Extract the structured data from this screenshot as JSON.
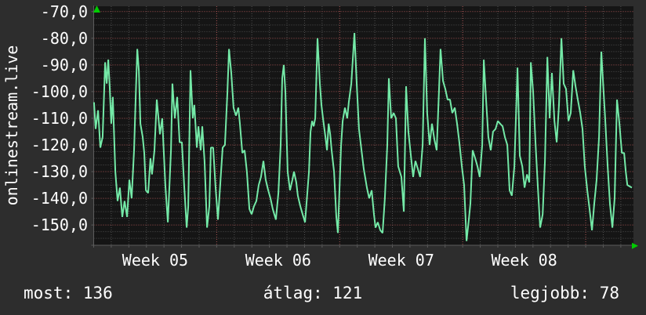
{
  "watermark": "onlinestream.live",
  "stats": [
    {
      "label": "most:",
      "value": "136"
    },
    {
      "label": "átlag:",
      "value": "121"
    },
    {
      "label": "legjobb:",
      "value": "78"
    }
  ],
  "chart_data": {
    "type": "line",
    "title": "onlinestream.live",
    "xlabel": "",
    "ylabel": "",
    "legend": "none",
    "grid": "on",
    "y_axis": {
      "ylim": [
        -157.6,
        -68
      ],
      "major_step": 10,
      "minor_step": 2.5,
      "ticks": [
        {
          "label": "-70,0",
          "value": -70
        },
        {
          "label": "-80,0",
          "value": -80
        },
        {
          "label": "-90,0",
          "value": -90
        },
        {
          "label": "-100,0",
          "value": -100
        },
        {
          "label": "-110,0",
          "value": -110
        },
        {
          "label": "-120,0",
          "value": -120
        },
        {
          "label": "-130,0",
          "value": -130
        },
        {
          "label": "-140,0",
          "value": -140
        },
        {
          "label": "-150,0",
          "value": -150
        }
      ]
    },
    "x_axis": {
      "unit": "days",
      "days_total": 30.77,
      "minor_step_days": 1,
      "week_boundaries_days": [
        7,
        14,
        21,
        28
      ],
      "ticks": [
        {
          "label": "Week 05",
          "day": 3.5
        },
        {
          "label": "Week 06",
          "day": 10.5
        },
        {
          "label": "Week 07",
          "day": 17.5
        },
        {
          "label": "Week 08",
          "day": 24.5
        }
      ]
    },
    "summary": {
      "most": 136,
      "atlag": 121,
      "legjobb": 78
    },
    "colors": {
      "background": "#2d2d2d",
      "plot_background": "#151515",
      "minor_grid": "#4f4f4f",
      "major_grid": "#a85454",
      "axis": "#5c5c5c",
      "line": "#74e9a7",
      "arrow": "#00cc00",
      "text": "#ffffff"
    },
    "points": [
      [
        0.02,
        -104
      ],
      [
        0.11,
        -114
      ],
      [
        0.25,
        -107
      ],
      [
        0.38,
        -121
      ],
      [
        0.51,
        -117
      ],
      [
        0.65,
        -89
      ],
      [
        0.74,
        -97
      ],
      [
        0.83,
        -88
      ],
      [
        0.91,
        -98
      ],
      [
        1.0,
        -112
      ],
      [
        1.09,
        -102
      ],
      [
        1.23,
        -130
      ],
      [
        1.36,
        -141
      ],
      [
        1.49,
        -136
      ],
      [
        1.63,
        -147
      ],
      [
        1.76,
        -141
      ],
      [
        1.9,
        -147
      ],
      [
        2.03,
        -133
      ],
      [
        2.16,
        -140
      ],
      [
        2.3,
        -122
      ],
      [
        2.39,
        -102
      ],
      [
        2.48,
        -84
      ],
      [
        2.57,
        -92
      ],
      [
        2.66,
        -112
      ],
      [
        2.79,
        -117
      ],
      [
        2.88,
        -123
      ],
      [
        2.97,
        -137
      ],
      [
        3.1,
        -138
      ],
      [
        3.23,
        -125
      ],
      [
        3.32,
        -131
      ],
      [
        3.46,
        -122
      ],
      [
        3.59,
        -103
      ],
      [
        3.77,
        -116
      ],
      [
        3.9,
        -110
      ],
      [
        4.08,
        -135
      ],
      [
        4.22,
        -149
      ],
      [
        4.4,
        -122
      ],
      [
        4.48,
        -97
      ],
      [
        4.62,
        -110
      ],
      [
        4.75,
        -102
      ],
      [
        4.89,
        -119
      ],
      [
        5.02,
        -119
      ],
      [
        5.15,
        -135
      ],
      [
        5.29,
        -151
      ],
      [
        5.38,
        -143
      ],
      [
        5.51,
        -92
      ],
      [
        5.64,
        -110
      ],
      [
        5.73,
        -105
      ],
      [
        5.87,
        -121
      ],
      [
        5.96,
        -113
      ],
      [
        6.09,
        -122
      ],
      [
        6.18,
        -113
      ],
      [
        6.31,
        -126
      ],
      [
        6.45,
        -151
      ],
      [
        6.58,
        -143
      ],
      [
        6.67,
        -121
      ],
      [
        6.8,
        -121
      ],
      [
        6.94,
        -136
      ],
      [
        7.07,
        -148
      ],
      [
        7.21,
        -134
      ],
      [
        7.34,
        -121
      ],
      [
        7.47,
        -120
      ],
      [
        7.61,
        -100
      ],
      [
        7.7,
        -84
      ],
      [
        7.83,
        -93
      ],
      [
        7.96,
        -106
      ],
      [
        8.1,
        -109
      ],
      [
        8.23,
        -106
      ],
      [
        8.32,
        -112
      ],
      [
        8.46,
        -123
      ],
      [
        8.59,
        -122
      ],
      [
        8.72,
        -130
      ],
      [
        8.86,
        -144
      ],
      [
        8.99,
        -146
      ],
      [
        9.12,
        -143
      ],
      [
        9.26,
        -141
      ],
      [
        9.39,
        -135
      ],
      [
        9.52,
        -132
      ],
      [
        9.66,
        -126
      ],
      [
        9.79,
        -133
      ],
      [
        9.93,
        -137
      ],
      [
        10.06,
        -140
      ],
      [
        10.19,
        -144
      ],
      [
        10.37,
        -148
      ],
      [
        10.51,
        -138
      ],
      [
        10.64,
        -120
      ],
      [
        10.73,
        -95
      ],
      [
        10.82,
        -90
      ],
      [
        10.91,
        -100
      ],
      [
        11.04,
        -130
      ],
      [
        11.17,
        -137
      ],
      [
        11.31,
        -133
      ],
      [
        11.4,
        -130
      ],
      [
        11.53,
        -134
      ],
      [
        11.62,
        -139
      ],
      [
        11.76,
        -143
      ],
      [
        11.89,
        -146
      ],
      [
        12.03,
        -149
      ],
      [
        12.16,
        -138
      ],
      [
        12.25,
        -130
      ],
      [
        12.34,
        -115
      ],
      [
        12.43,
        -111
      ],
      [
        12.52,
        -113
      ],
      [
        12.61,
        -110
      ],
      [
        12.74,
        -80
      ],
      [
        12.87,
        -97
      ],
      [
        12.96,
        -105
      ],
      [
        13.05,
        -110
      ],
      [
        13.19,
        -117
      ],
      [
        13.28,
        -122
      ],
      [
        13.37,
        -112
      ],
      [
        13.46,
        -116
      ],
      [
        13.54,
        -122
      ],
      [
        13.68,
        -130
      ],
      [
        13.81,
        -147
      ],
      [
        13.9,
        -153
      ],
      [
        13.99,
        -136
      ],
      [
        14.08,
        -120
      ],
      [
        14.17,
        -111
      ],
      [
        14.3,
        -106
      ],
      [
        14.43,
        -110
      ],
      [
        14.52,
        -104
      ],
      [
        14.66,
        -97
      ],
      [
        14.84,
        -78
      ],
      [
        14.97,
        -97
      ],
      [
        15.1,
        -114
      ],
      [
        15.24,
        -122
      ],
      [
        15.37,
        -129
      ],
      [
        15.55,
        -136
      ],
      [
        15.68,
        -140
      ],
      [
        15.82,
        -137
      ],
      [
        15.95,
        -146
      ],
      [
        16.04,
        -151
      ],
      [
        16.17,
        -149
      ],
      [
        16.31,
        -152
      ],
      [
        16.44,
        -153
      ],
      [
        16.57,
        -140
      ],
      [
        16.71,
        -120
      ],
      [
        16.8,
        -95
      ],
      [
        16.93,
        -110
      ],
      [
        17.07,
        -108
      ],
      [
        17.2,
        -110
      ],
      [
        17.33,
        -128
      ],
      [
        17.51,
        -132
      ],
      [
        17.65,
        -145
      ],
      [
        17.78,
        -98
      ],
      [
        17.91,
        -115
      ],
      [
        18.05,
        -124
      ],
      [
        18.18,
        -132
      ],
      [
        18.31,
        -126
      ],
      [
        18.45,
        -129
      ],
      [
        18.58,
        -132
      ],
      [
        18.72,
        -120
      ],
      [
        18.85,
        -80
      ],
      [
        18.98,
        -108
      ],
      [
        19.12,
        -120
      ],
      [
        19.25,
        -112
      ],
      [
        19.39,
        -118
      ],
      [
        19.52,
        -122
      ],
      [
        19.65,
        -100
      ],
      [
        19.74,
        -84
      ],
      [
        19.88,
        -96
      ],
      [
        20.01,
        -99
      ],
      [
        20.14,
        -103
      ],
      [
        20.28,
        -103
      ],
      [
        20.41,
        -108
      ],
      [
        20.55,
        -106
      ],
      [
        20.68,
        -112
      ],
      [
        20.81,
        -119
      ],
      [
        20.95,
        -128
      ],
      [
        21.08,
        -135
      ],
      [
        21.22,
        -156
      ],
      [
        21.35,
        -148
      ],
      [
        21.44,
        -142
      ],
      [
        21.57,
        -122
      ],
      [
        21.71,
        -125
      ],
      [
        21.84,
        -128
      ],
      [
        21.97,
        -132
      ],
      [
        22.11,
        -120
      ],
      [
        22.2,
        -88
      ],
      [
        22.33,
        -103
      ],
      [
        22.46,
        -117
      ],
      [
        22.6,
        -122
      ],
      [
        22.73,
        -115
      ],
      [
        22.87,
        -114
      ],
      [
        23.0,
        -111
      ],
      [
        23.13,
        -112
      ],
      [
        23.27,
        -113
      ],
      [
        23.4,
        -117
      ],
      [
        23.54,
        -120
      ],
      [
        23.67,
        -137
      ],
      [
        23.8,
        -139
      ],
      [
        23.94,
        -128
      ],
      [
        24.12,
        -91
      ],
      [
        24.25,
        -124
      ],
      [
        24.39,
        -128
      ],
      [
        24.52,
        -136
      ],
      [
        24.66,
        -131
      ],
      [
        24.79,
        -134
      ],
      [
        24.88,
        -89
      ],
      [
        25.01,
        -100
      ],
      [
        25.15,
        -120
      ],
      [
        25.28,
        -136
      ],
      [
        25.41,
        -151
      ],
      [
        25.55,
        -146
      ],
      [
        25.68,
        -126
      ],
      [
        25.82,
        -87
      ],
      [
        25.95,
        -110
      ],
      [
        26.08,
        -93
      ],
      [
        26.22,
        -111
      ],
      [
        26.35,
        -119
      ],
      [
        26.48,
        -105
      ],
      [
        26.62,
        -80
      ],
      [
        26.75,
        -97
      ],
      [
        26.88,
        -99
      ],
      [
        27.02,
        -111
      ],
      [
        27.15,
        -108
      ],
      [
        27.29,
        -92
      ],
      [
        27.42,
        -98
      ],
      [
        27.55,
        -103
      ],
      [
        27.69,
        -108
      ],
      [
        27.82,
        -114
      ],
      [
        27.95,
        -128
      ],
      [
        28.09,
        -137
      ],
      [
        28.22,
        -144
      ],
      [
        28.36,
        -152
      ],
      [
        28.49,
        -142
      ],
      [
        28.62,
        -133
      ],
      [
        28.76,
        -117
      ],
      [
        28.89,
        -85
      ],
      [
        29.02,
        -100
      ],
      [
        29.11,
        -110
      ],
      [
        29.25,
        -128
      ],
      [
        29.38,
        -142
      ],
      [
        29.52,
        -151
      ],
      [
        29.65,
        -140
      ],
      [
        29.78,
        -103
      ],
      [
        29.92,
        -112
      ],
      [
        30.06,
        -123
      ],
      [
        30.19,
        -123
      ],
      [
        30.28,
        -130
      ],
      [
        30.37,
        -135
      ],
      [
        30.63,
        -136
      ]
    ]
  }
}
